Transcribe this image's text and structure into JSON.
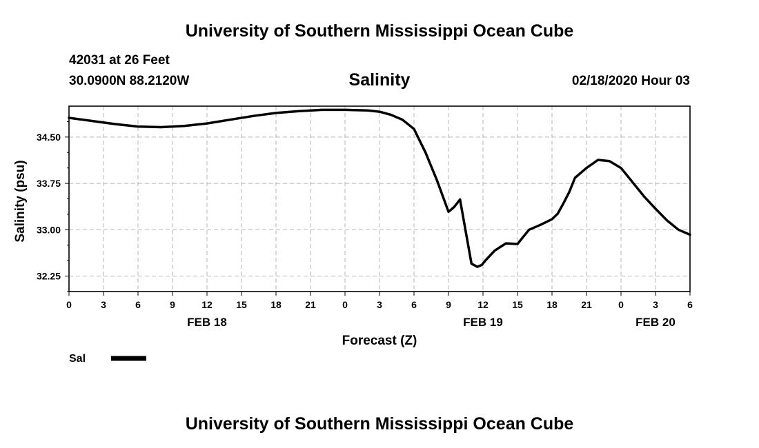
{
  "header": {
    "title": "University of Southern Mississippi Ocean Cube",
    "station": "42031 at 26 Feet",
    "location": "30.0900N 88.2120W",
    "date_label": "02/18/2020 Hour 03"
  },
  "footer": {
    "title": "University of Southern Mississippi Ocean Cube"
  },
  "chart_data": {
    "type": "line",
    "title": "Salinity",
    "xlabel": "Forecast (Z)",
    "ylabel": "Salinity (psu)",
    "x_units": "hours from 2020-02-18 00Z",
    "xlim": [
      0,
      54
    ],
    "ylim": [
      32.0,
      35.0
    ],
    "grid": true,
    "x_ticks": [
      0,
      3,
      6,
      9,
      12,
      15,
      18,
      21,
      24,
      27,
      30,
      33,
      36,
      39,
      42,
      45,
      48,
      51,
      54
    ],
    "x_tick_labels": [
      "0",
      "3",
      "6",
      "9",
      "12",
      "15",
      "18",
      "21",
      "0",
      "3",
      "6",
      "9",
      "12",
      "15",
      "18",
      "21",
      "0",
      "3",
      "6"
    ],
    "date_labels": [
      {
        "x": 12,
        "label": "FEB 18"
      },
      {
        "x": 36,
        "label": "FEB 19"
      },
      {
        "x": 51,
        "label": "FEB 20"
      }
    ],
    "y_major_ticks": [
      32.25,
      33.0,
      33.75,
      34.5
    ],
    "y_tick_labels": [
      "32.25",
      "33.00",
      "33.75",
      "34.50"
    ],
    "y_minor_ticks": [
      32.0,
      32.5,
      32.75,
      33.25,
      33.5,
      34.0,
      34.25,
      34.75
    ],
    "legend": {
      "position": "bottom-left",
      "label": "Sal",
      "color": "#000000"
    },
    "series": [
      {
        "name": "Sal",
        "color": "#000000",
        "x": [
          0,
          2,
          4,
          6,
          8,
          10,
          12,
          14,
          16,
          18,
          20,
          22,
          24,
          26,
          27,
          28,
          29,
          30,
          31,
          32,
          33,
          33.5,
          34,
          35,
          35.5,
          35.9,
          36.2,
          37,
          37.5,
          38,
          39,
          40,
          41,
          42,
          42.5,
          43,
          43.5,
          44,
          45,
          46,
          47,
          48,
          49,
          50,
          51,
          52,
          53,
          54
        ],
        "y": [
          34.81,
          34.76,
          34.71,
          34.67,
          34.66,
          34.68,
          34.72,
          34.78,
          34.84,
          34.89,
          34.92,
          34.94,
          34.94,
          34.93,
          34.91,
          34.86,
          34.78,
          34.63,
          34.25,
          33.8,
          33.29,
          33.37,
          33.49,
          32.45,
          32.4,
          32.43,
          32.5,
          32.66,
          32.72,
          32.78,
          32.77,
          33.0,
          33.08,
          33.17,
          33.26,
          33.43,
          33.61,
          33.84,
          34.0,
          34.13,
          34.11,
          34.0,
          33.77,
          33.54,
          33.34,
          33.15,
          33.0,
          32.92
        ]
      }
    ]
  }
}
